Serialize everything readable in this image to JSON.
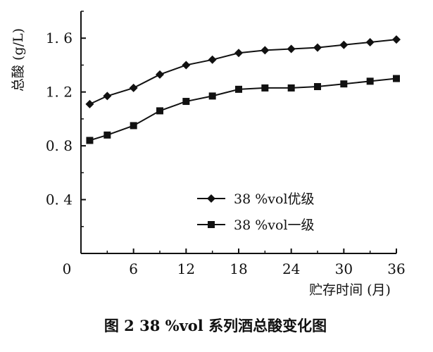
{
  "caption": "图 2   38 %vol 系列酒总酸变化图",
  "chart_data": {
    "type": "line",
    "xlabel": "贮存时间 (月)",
    "ylabel": "总酸 (g/L)",
    "xlim": [
      0,
      36
    ],
    "ylim": [
      0,
      1.8
    ],
    "x_ticks": [
      0,
      6,
      12,
      18,
      24,
      30,
      36
    ],
    "y_ticks": [
      0.4,
      0.8,
      1.2,
      1.6
    ],
    "x_tick_labels": [
      "0",
      "6",
      "12",
      "18",
      "24",
      "30",
      "36"
    ],
    "y_tick_labels": [
      "0. 4",
      "0. 8",
      "1. 2",
      "1. 6"
    ],
    "grid": false,
    "legend_position": "center",
    "series": [
      {
        "name": "38 %vol优级",
        "marker": "diamond",
        "color": "#111111",
        "x": [
          1,
          3,
          6,
          9,
          12,
          15,
          18,
          21,
          24,
          27,
          30,
          33,
          36
        ],
        "values": [
          1.11,
          1.17,
          1.23,
          1.33,
          1.4,
          1.44,
          1.49,
          1.51,
          1.52,
          1.53,
          1.55,
          1.57,
          1.59
        ]
      },
      {
        "name": "38 %vol一级",
        "marker": "square",
        "color": "#111111",
        "x": [
          1,
          3,
          6,
          9,
          12,
          15,
          18,
          21,
          24,
          27,
          30,
          33,
          36
        ],
        "values": [
          0.84,
          0.88,
          0.95,
          1.06,
          1.13,
          1.17,
          1.22,
          1.23,
          1.23,
          1.24,
          1.26,
          1.28,
          1.3
        ]
      }
    ]
  }
}
